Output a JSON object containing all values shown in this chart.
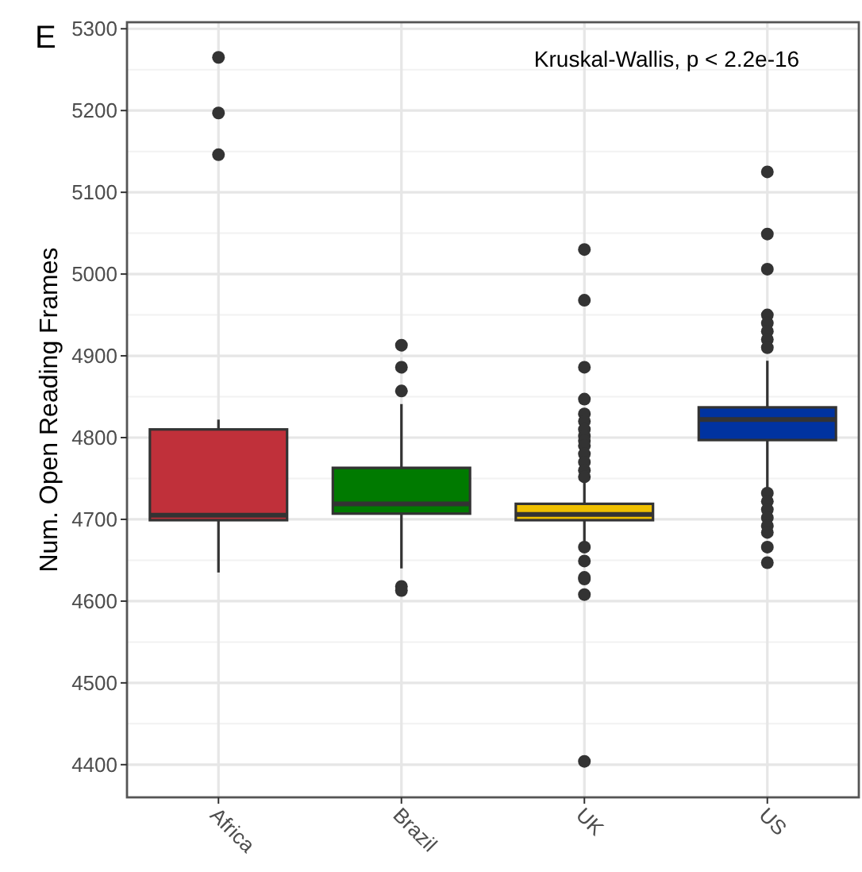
{
  "chart_data": {
    "type": "box",
    "ylabel": "Num. Open Reading Frames",
    "categories": [
      "Africa",
      "Brazil",
      "UK",
      "US"
    ],
    "colors": [
      "#c0303a",
      "#007a00",
      "#f0c000",
      "#0033a0"
    ],
    "boxes": [
      {
        "low": 4635,
        "q1": 4699,
        "median": 4705,
        "q3": 4810,
        "high": 4822,
        "outliers": [
          5265,
          5197,
          5146
        ]
      },
      {
        "low": 4640,
        "q1": 4707,
        "median": 4719,
        "q3": 4763,
        "high": 4841,
        "outliers": [
          4913,
          4886,
          4857,
          4618,
          4613
        ]
      },
      {
        "low": 4670,
        "q1": 4699,
        "median": 4706,
        "q3": 4719,
        "high": 4745,
        "outliers": [
          5030,
          4968,
          4886,
          4847,
          4829,
          4820,
          4810,
          4802,
          4796,
          4790,
          4780,
          4770,
          4760,
          4752,
          4666,
          4649,
          4629,
          4627,
          4608,
          4404
        ]
      },
      {
        "low": 4738,
        "q1": 4797,
        "median": 4822,
        "q3": 4837,
        "high": 4894,
        "outliers": [
          5125,
          5049,
          5006,
          4950,
          4940,
          4930,
          4920,
          4910,
          4732,
          4722,
          4712,
          4702,
          4692,
          4684,
          4666,
          4647
        ]
      }
    ],
    "ylim": [
      4360,
      5308
    ],
    "yticks": [
      4400,
      4500,
      4600,
      4700,
      4800,
      4900,
      5000,
      5100,
      5200,
      5300
    ],
    "grid": true,
    "annotations": [
      "E",
      "Kruskal-Wallis, p < 2.2e-16"
    ]
  }
}
